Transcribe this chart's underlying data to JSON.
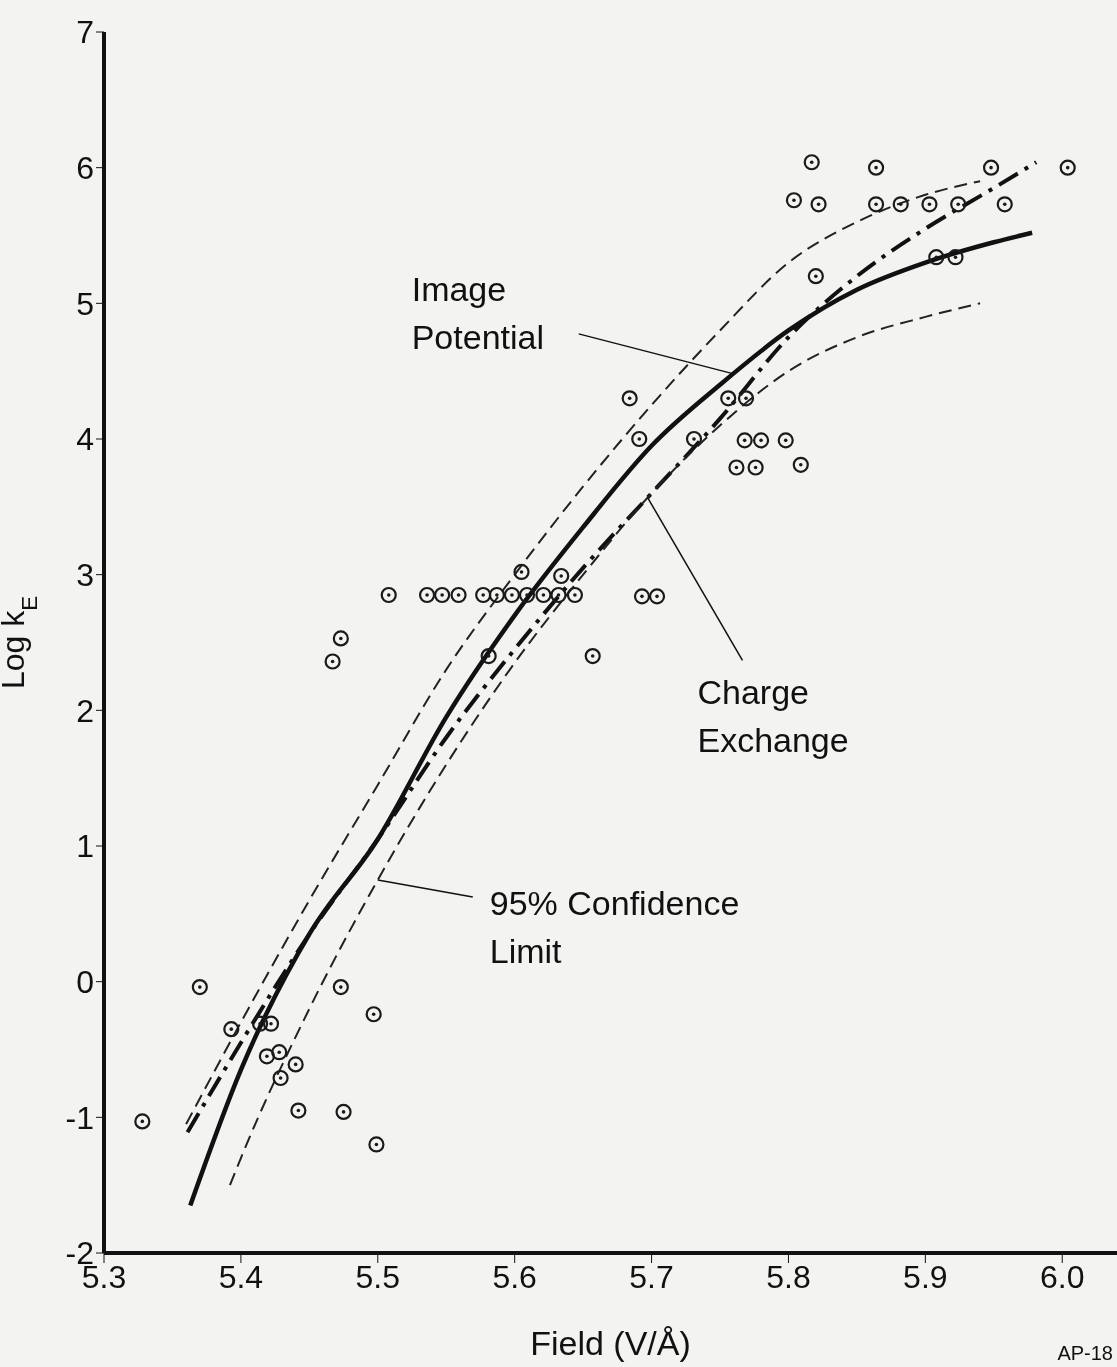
{
  "chart_data": {
    "type": "scatter",
    "xlabel": "Field (V/Å)",
    "ylabel": "Log k$_{E}$",
    "xlim": [
      5.3,
      6.04
    ],
    "ylim": [
      -2,
      7
    ],
    "xticks": [
      5.3,
      5.4,
      5.5,
      5.6,
      5.7,
      5.8,
      5.9,
      {
        "value": 6,
        "label": "6.0"
      }
    ],
    "yticks": [
      -2,
      -1,
      0,
      1,
      2,
      3,
      4,
      5,
      6,
      7
    ],
    "grid": false,
    "legend": false,
    "series": [
      {
        "marker": "circle",
        "color": "#1a1a1a",
        "x": [
          5.328,
          5.37,
          5.393,
          5.414,
          5.422,
          5.419,
          5.428,
          5.429,
          5.44,
          5.442,
          5.467,
          5.473,
          5.473,
          5.475,
          5.497,
          5.499,
          5.508,
          5.536,
          5.547,
          5.559,
          5.577,
          5.587,
          5.598,
          5.609,
          5.621,
          5.632,
          5.644,
          5.605,
          5.634,
          5.581,
          5.657,
          5.684,
          5.691,
          5.693,
          5.704,
          5.731,
          5.756,
          5.769,
          5.762,
          5.776,
          5.768,
          5.78,
          5.798,
          5.809,
          5.804,
          5.817,
          5.822,
          5.82,
          5.864,
          5.864,
          5.882,
          5.903,
          5.924,
          5.958,
          5.948,
          5.908,
          5.922,
          6.004
        ],
        "values": [
          -1.03,
          -0.04,
          -0.35,
          -0.31,
          -0.31,
          -0.55,
          -0.52,
          -0.71,
          -0.61,
          -0.95,
          2.36,
          2.53,
          -0.04,
          -0.96,
          -0.24,
          -1.2,
          2.85,
          2.85,
          2.85,
          2.85,
          2.85,
          2.85,
          2.85,
          2.85,
          2.85,
          2.85,
          2.85,
          3.02,
          2.99,
          2.4,
          2.4,
          4.3,
          4.0,
          2.84,
          2.84,
          4.0,
          4.3,
          4.3,
          3.79,
          3.79,
          3.99,
          3.99,
          3.99,
          3.81,
          5.76,
          6.04,
          5.73,
          5.2,
          6.0,
          5.73,
          5.73,
          5.73,
          5.73,
          5.73,
          6.0,
          5.34,
          5.34,
          6.0
        ]
      },
      {
        "type": "line",
        "line_style": "solid",
        "color": "#111111",
        "x": [
          5.363,
          5.4,
          5.45,
          5.5,
          5.55,
          5.6,
          5.65,
          5.7,
          5.75,
          5.8,
          5.85,
          5.9,
          5.95,
          5.978
        ],
        "values": [
          -1.65,
          -0.65,
          0.35,
          1.05,
          1.95,
          2.7,
          3.35,
          3.95,
          4.4,
          4.8,
          5.1,
          5.3,
          5.45,
          5.52
        ]
      },
      {
        "type": "line",
        "line_style": "dashdot",
        "color": "#111111",
        "x": [
          5.361,
          5.4,
          5.45,
          5.5,
          5.55,
          5.6,
          5.65,
          5.7,
          5.75,
          5.8,
          5.85,
          5.9,
          5.95,
          5.981
        ],
        "values": [
          -1.11,
          -0.45,
          0.35,
          1.05,
          1.8,
          2.45,
          3.05,
          3.6,
          4.15,
          4.75,
          5.2,
          5.55,
          5.85,
          6.04
        ]
      },
      {
        "type": "line",
        "line_style": "dashed",
        "color": "#222222",
        "x": [
          5.36,
          5.4,
          5.45,
          5.5,
          5.55,
          5.6,
          5.65,
          5.7,
          5.75,
          5.8,
          5.85,
          5.9,
          5.94
        ],
        "values": [
          -1.05,
          -0.3,
          0.6,
          1.45,
          2.3,
          3.0,
          3.65,
          4.25,
          4.8,
          5.3,
          5.6,
          5.8,
          5.9
        ]
      },
      {
        "type": "line",
        "line_style": "dashed",
        "color": "#222222",
        "x": [
          5.392,
          5.4,
          5.45,
          5.5,
          5.55,
          5.6,
          5.65,
          5.7,
          5.75,
          5.8,
          5.85,
          5.9,
          5.94
        ],
        "values": [
          -1.5,
          -1.3,
          -0.2,
          0.75,
          1.6,
          2.35,
          3.0,
          3.6,
          4.1,
          4.5,
          4.75,
          4.9,
          5.0
        ]
      }
    ],
    "annotations": [
      {
        "text": "Image Potential",
        "x": 5.76,
        "y": 4.48
      },
      {
        "text": "Charge Exchange",
        "x": 5.697,
        "y": 3.57
      },
      {
        "text": "95% Confidence Limit",
        "x": 5.5,
        "y": 0.75
      },
      "AP-18"
    ]
  }
}
